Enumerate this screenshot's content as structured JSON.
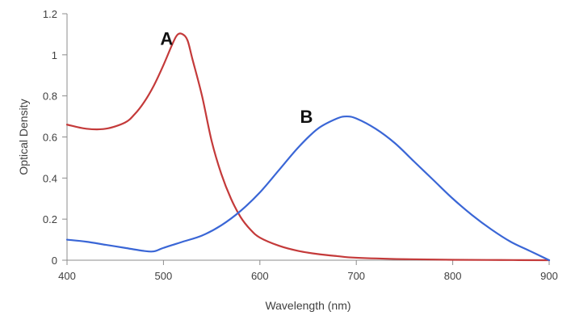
{
  "chart_data": {
    "type": "line",
    "title": "",
    "xlabel": "Wavelength (nm)",
    "ylabel": "Optical Density",
    "xlim": [
      400,
      900
    ],
    "ylim": [
      0,
      1.2
    ],
    "x_ticks": [
      400,
      500,
      600,
      700,
      800,
      900
    ],
    "y_ticks": [
      0,
      0.2,
      0.4,
      0.6,
      0.8,
      1,
      1.2
    ],
    "x_tick_labels": [
      "400",
      "500",
      "600",
      "700",
      "800",
      "900"
    ],
    "y_tick_labels": [
      "0",
      "0.2",
      "0.4",
      "0.6",
      "0.8",
      "1",
      "1.2"
    ],
    "grid": false,
    "legend": "none",
    "series": [
      {
        "label": "A",
        "color": "#c43a3a",
        "x": [
          400,
          420,
          440,
          460,
          470,
          480,
          490,
          500,
          510,
          515,
          520,
          525,
          530,
          540,
          550,
          560,
          570,
          580,
          590,
          600,
          620,
          640,
          660,
          680,
          700,
          750,
          800,
          850,
          900
        ],
        "y": [
          0.66,
          0.64,
          0.64,
          0.67,
          0.71,
          0.77,
          0.85,
          0.95,
          1.06,
          1.1,
          1.1,
          1.07,
          0.98,
          0.8,
          0.58,
          0.42,
          0.3,
          0.21,
          0.15,
          0.11,
          0.07,
          0.045,
          0.03,
          0.02,
          0.012,
          0.005,
          0.002,
          0.001,
          0.0
        ]
      },
      {
        "label": "B",
        "color": "#3a66d6",
        "x": [
          400,
          420,
          440,
          460,
          480,
          490,
          500,
          520,
          540,
          560,
          580,
          600,
          620,
          640,
          660,
          680,
          690,
          700,
          720,
          740,
          760,
          780,
          800,
          820,
          840,
          860,
          880,
          900
        ],
        "y": [
          0.1,
          0.09,
          0.075,
          0.06,
          0.045,
          0.043,
          0.06,
          0.09,
          0.12,
          0.17,
          0.24,
          0.33,
          0.44,
          0.55,
          0.64,
          0.69,
          0.7,
          0.69,
          0.64,
          0.57,
          0.48,
          0.39,
          0.3,
          0.22,
          0.15,
          0.09,
          0.045,
          0.0
        ]
      }
    ],
    "annotations": [
      {
        "text": "A",
        "x": 510,
        "y": 1.08
      },
      {
        "text": "B",
        "x": 655,
        "y": 0.7
      }
    ]
  }
}
